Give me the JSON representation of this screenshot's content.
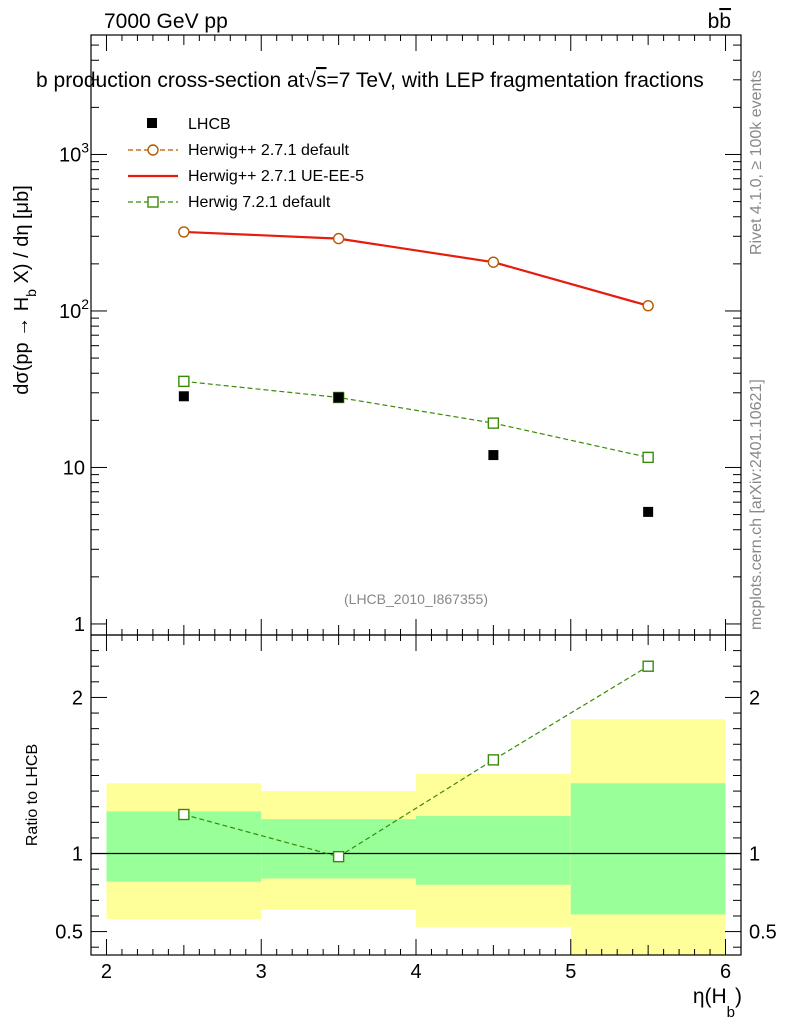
{
  "chart_data": {
    "type": "scatter",
    "header_left": "7000 GeV pp",
    "header_right": "b",
    "header_right_bar": "b",
    "title": {
      "prefix": "b production cross-section at",
      "root_symbol": "√",
      "root_arg": "s",
      "suffix": "=7 TeV, with LEP fragmentation fractions"
    },
    "side_label_top": "Rivet 4.1.0, ≥ 100k events",
    "side_label_bottom": "mcplots.cern.ch [arXiv:2401.10621]",
    "watermark": "(LHCB_2010_I867355)",
    "y_label": {
      "main": "dσ(pp → H",
      "sub": "b",
      "tail": " X) / dη [μb]"
    },
    "x_label": {
      "main": "η(H",
      "sub": "b",
      "close": ")"
    },
    "ratio_ylabel": "Ratio to LHCB",
    "xlim": [
      1.9,
      6.1
    ],
    "ylim": [
      0.85,
      5800
    ],
    "ratio_ylim": [
      0.35,
      2.4
    ],
    "x_ticks": [
      "2",
      "3",
      "4",
      "5",
      "6"
    ],
    "y_ticks": [
      {
        "value": 1,
        "base": "1",
        "exp": ""
      },
      {
        "value": 10,
        "base": "10",
        "exp": ""
      },
      {
        "value": 100,
        "base": "10",
        "exp": "2"
      },
      {
        "value": 1000,
        "base": "10",
        "exp": "3"
      }
    ],
    "ratio_ticks": [
      {
        "value": 0.5,
        "label": "0.5"
      },
      {
        "value": 1,
        "label": "1"
      },
      {
        "value": 2,
        "label": "2"
      }
    ],
    "x": [
      2.5,
      3.5,
      4.5,
      5.5
    ],
    "bins": [
      [
        2,
        3
      ],
      [
        3,
        4
      ],
      [
        4,
        5
      ],
      [
        5,
        6
      ]
    ],
    "data": {
      "name": "LHCB",
      "values": [
        28.5,
        28.0,
        12.0,
        5.2
      ]
    },
    "series": [
      {
        "name": "Herwig++ 2.7.1 default",
        "color": "#b35a00",
        "marker": "circle",
        "dash": "5,3",
        "values": [
          320,
          290,
          205,
          108
        ]
      },
      {
        "name": "Herwig++ 2.7.1 UE-EE-5",
        "color": "#e51c0e",
        "marker": "none",
        "dash": "",
        "values": [
          320,
          290,
          205,
          108
        ]
      },
      {
        "name": "Herwig 7.2.1 default",
        "color": "#3a8a0a",
        "marker": "square",
        "dash": "5,3",
        "values": [
          35.5,
          28.0,
          19.2,
          11.6
        ]
      }
    ],
    "ratio_series": {
      "name": "Herwig 7.2.1 default",
      "values": [
        1.25,
        0.98,
        1.6,
        2.2
      ]
    },
    "ratio_bands": {
      "inner": [
        [
          0.82,
          1.27
        ],
        [
          0.84,
          1.22
        ],
        [
          0.8,
          1.24
        ],
        [
          0.61,
          1.45
        ]
      ],
      "outer": [
        [
          0.58,
          1.45
        ],
        [
          0.64,
          1.4
        ],
        [
          0.53,
          1.51
        ],
        [
          0.35,
          1.86
        ]
      ]
    },
    "colors": {
      "inner_band": "#99ff99",
      "outer_band": "#ffff99",
      "side_text": "#888888",
      "watermark": "#888888"
    }
  }
}
